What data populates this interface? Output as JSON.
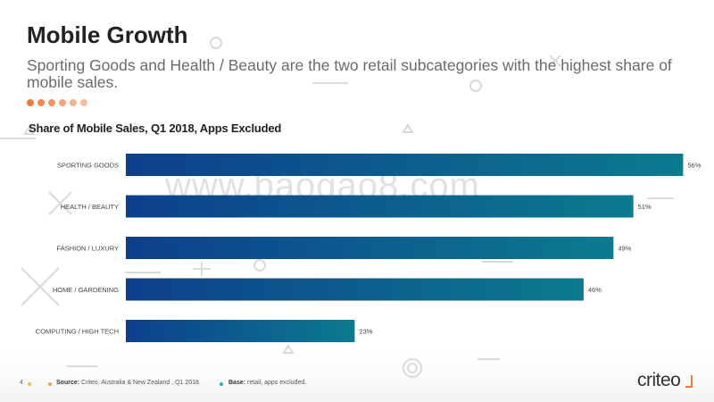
{
  "slide": {
    "title": "Mobile Growth",
    "subtitle": "Sporting Goods and Health / Beauty are the two retail subcategories with the highest share of mobile sales.",
    "watermark": "www.baogao8.com",
    "page_number": "4",
    "source_label": "Source:",
    "source_text": "Criteo, Australia & New Zealand , Q1 2018.",
    "base_label": "Base:",
    "base_text": "retail, apps excluded.",
    "logo_text": "criteo"
  },
  "colors": {
    "bar_start": "#0d3f8c",
    "bar_end": "#0b7b8f",
    "dots": [
      "#f07a3a",
      "#f2884f",
      "#f39664",
      "#f5a479",
      "#f6b28e",
      "#f8c0a3"
    ],
    "source_dot": "#f0a33a",
    "base_dot": "#26b5a5",
    "page_dot": "#f0c040"
  },
  "chart_data": {
    "type": "bar",
    "orientation": "horizontal",
    "title": "Share of Mobile Sales, Q1 2018, Apps Excluded",
    "categories": [
      "SPORTING GOODS",
      "HEALTH / BEAUTY",
      "FASHION / LUXURY",
      "HOME / GARDENING",
      "COMPUTING / HIGH TECH"
    ],
    "values": [
      56,
      51,
      49,
      46,
      23
    ],
    "value_labels": [
      "56%",
      "51%",
      "49%",
      "46%",
      "23%"
    ],
    "xlim": [
      0,
      60
    ],
    "grid": false,
    "legend": "none"
  }
}
